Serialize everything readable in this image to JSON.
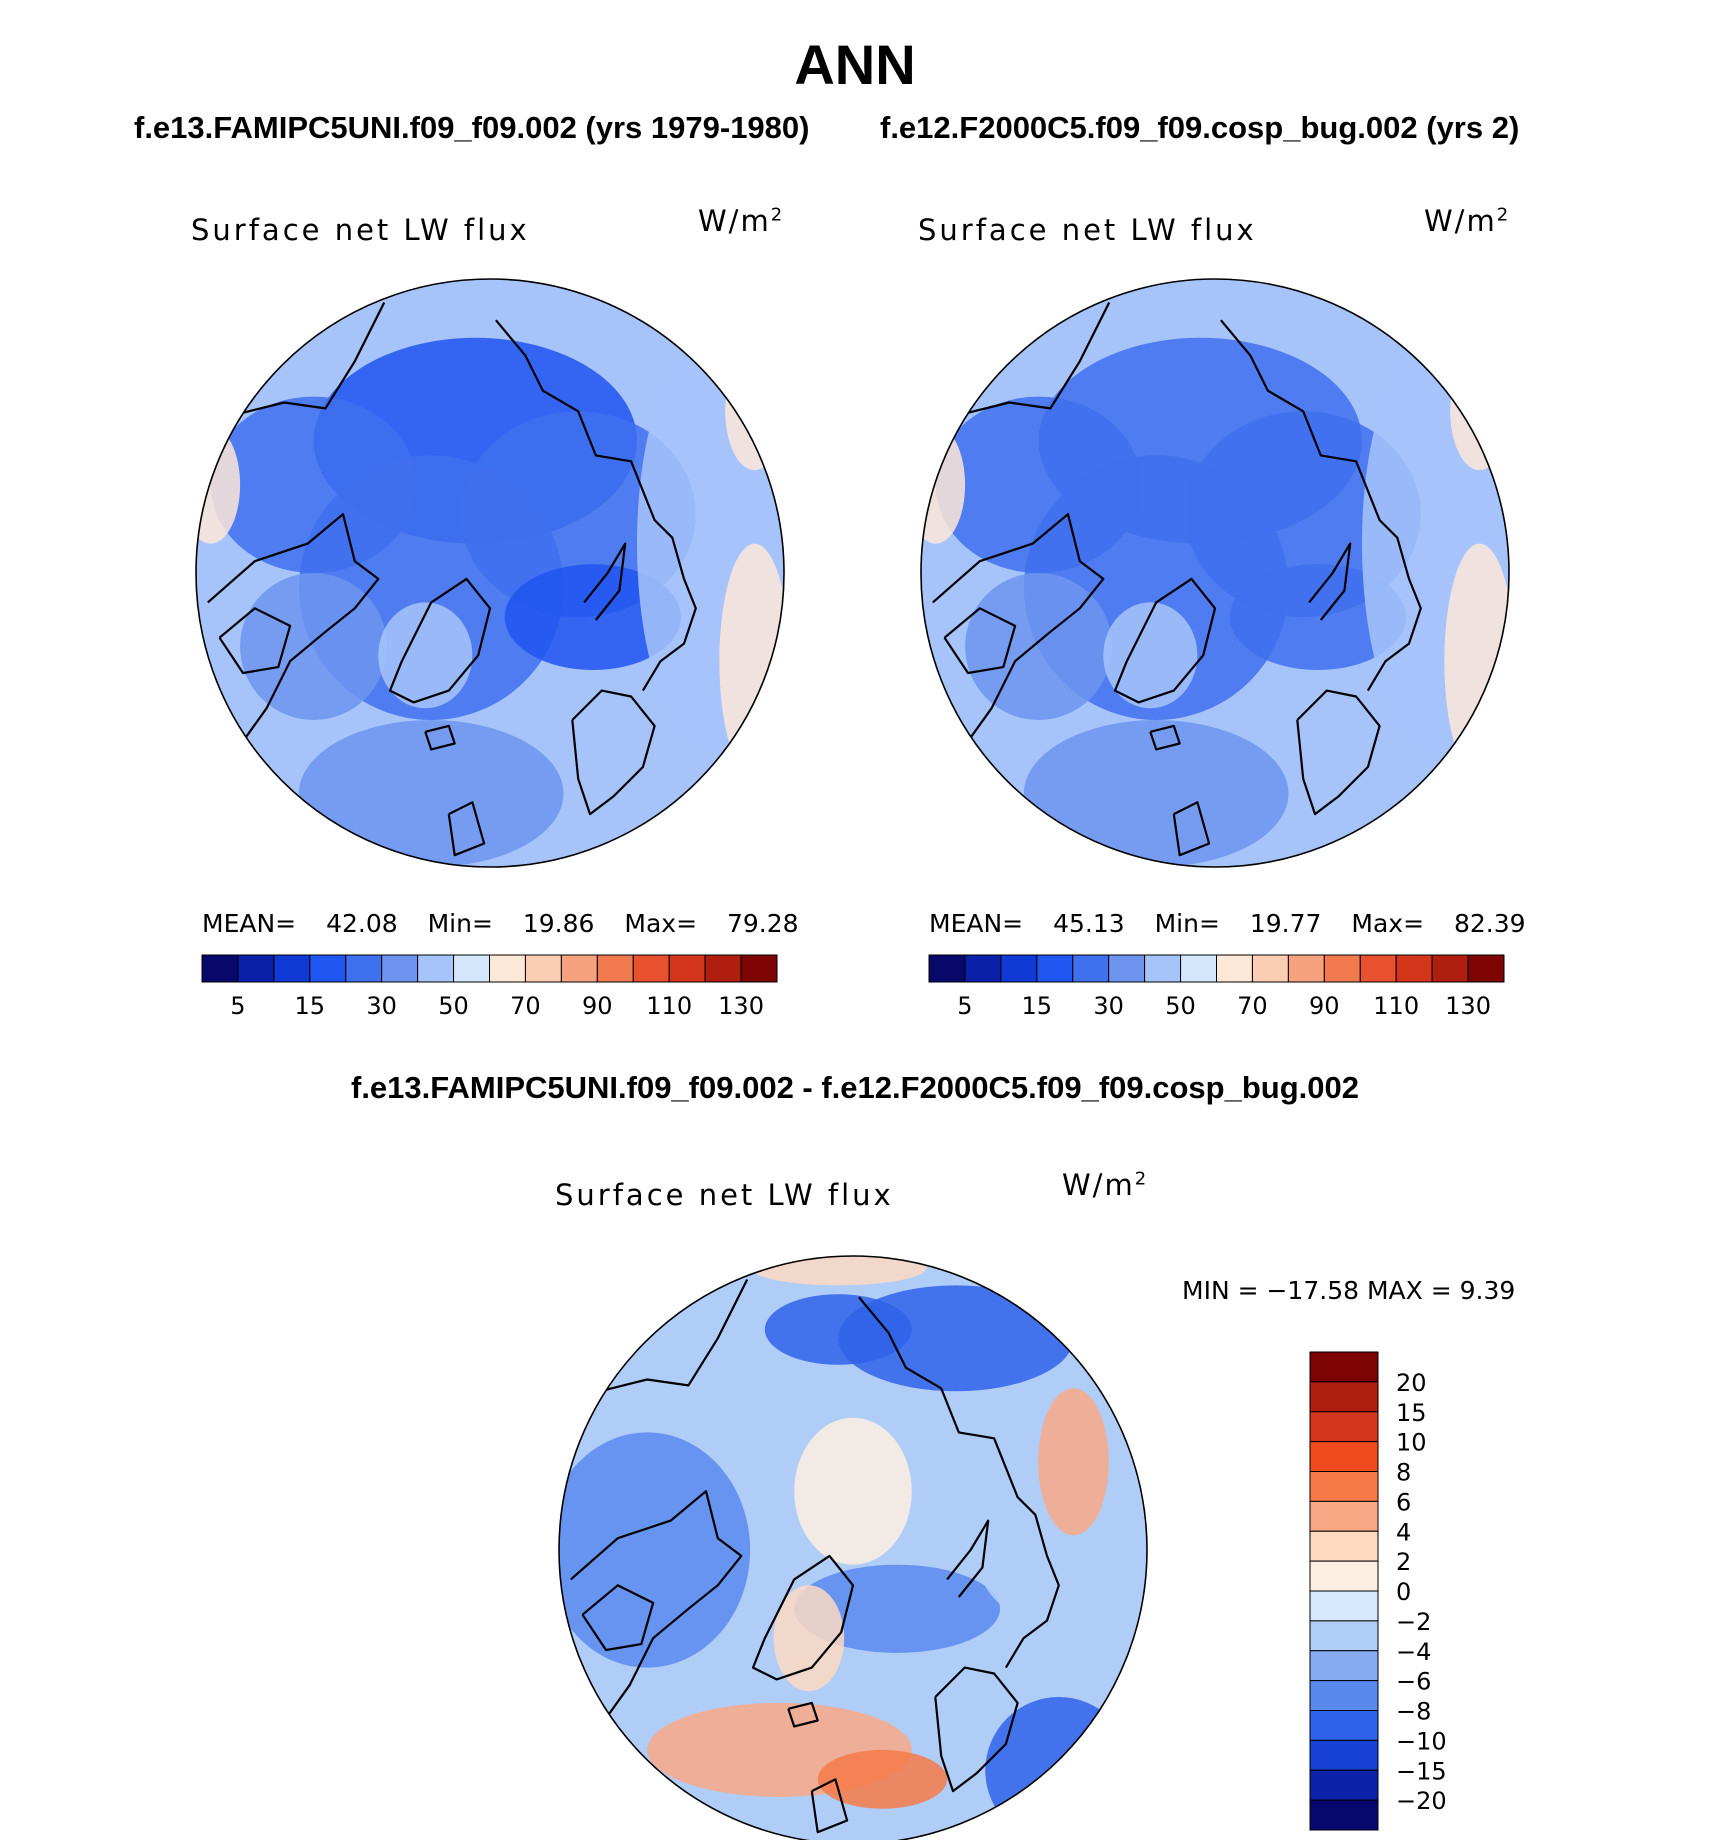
{
  "title": "ANN",
  "subtitles": {
    "left": "f.e13.FAMIPC5UNI.f09_f09.002 (yrs 1979-1980)",
    "right": "f.e12.F2000C5.f09_f09.cosp_bug.002 (yrs 2)"
  },
  "diff_title": "f.e13.FAMIPC5UNI.f09_f09.002 - f.e12.F2000C5.f09_f09.cosp_bug.002",
  "chart_data": [
    {
      "type": "heatmap",
      "projection": "polar stereographic (North Pole)",
      "variable": "Surface net LW flux",
      "units": "W/m2",
      "stats": {
        "mean_label": "MEAN=",
        "mean": "42.08",
        "min_label": "Min=",
        "min": "19.86",
        "max_label": "Max=",
        "max": "79.28"
      },
      "colorbar": {
        "orientation": "horizontal",
        "levels": [
          5,
          10,
          15,
          20,
          30,
          40,
          50,
          60,
          70,
          80,
          90,
          100,
          110,
          120,
          130
        ],
        "tick_labels": [
          "5",
          "15",
          "30",
          "50",
          "70",
          "90",
          "110",
          "130"
        ],
        "colors": [
          "#08086b",
          "#0a20a8",
          "#0f3ad6",
          "#1f55f0",
          "#3f70ee",
          "#6d95f0",
          "#a6c4fa",
          "#d4e7fb",
          "#fde8d8",
          "#fbcdb3",
          "#f7a27f",
          "#f07a4e",
          "#e8512e",
          "#d4361c",
          "#b01e10",
          "#7e0404"
        ]
      }
    },
    {
      "type": "heatmap",
      "projection": "polar stereographic (North Pole)",
      "variable": "Surface net LW flux",
      "units": "W/m2",
      "stats": {
        "mean_label": "MEAN=",
        "mean": "45.13",
        "min_label": "Min=",
        "min": "19.77",
        "max_label": "Max=",
        "max": "82.39"
      },
      "colorbar": {
        "orientation": "horizontal",
        "levels": [
          5,
          10,
          15,
          20,
          30,
          40,
          50,
          60,
          70,
          80,
          90,
          100,
          110,
          120,
          130
        ],
        "tick_labels": [
          "5",
          "15",
          "30",
          "50",
          "70",
          "90",
          "110",
          "130"
        ],
        "colors": [
          "#08086b",
          "#0a20a8",
          "#0f3ad6",
          "#1f55f0",
          "#3f70ee",
          "#6d95f0",
          "#a6c4fa",
          "#d4e7fb",
          "#fde8d8",
          "#fbcdb3",
          "#f7a27f",
          "#f07a4e",
          "#e8512e",
          "#d4361c",
          "#b01e10",
          "#7e0404"
        ]
      }
    },
    {
      "type": "heatmap",
      "projection": "polar stereographic (North Pole)",
      "variable": "Surface net LW flux",
      "units": "W/m2",
      "stats": {
        "text": "MIN = −17.58 MAX =    9.39",
        "min": -17.58,
        "max": 9.39
      },
      "colorbar": {
        "orientation": "vertical",
        "levels": [
          20,
          15,
          10,
          8,
          6,
          4,
          2,
          0,
          -2,
          -4,
          -6,
          -8,
          -10,
          -15,
          -20
        ],
        "tick_labels": [
          "20",
          "15",
          "10",
          "8",
          "6",
          "4",
          "2",
          "0",
          "−2",
          "−4",
          "−6",
          "−8",
          "−10",
          "−15",
          "−20"
        ],
        "colors": [
          "#7e0404",
          "#b01e10",
          "#d4361c",
          "#f04a1e",
          "#f67a48",
          "#f9a886",
          "#fdd9c2",
          "#fdeee2",
          "#d6e8fb",
          "#b0cdf8",
          "#86adf4",
          "#5a89ee",
          "#2f62ea",
          "#1740d4",
          "#0c22a8",
          "#07086b"
        ]
      }
    }
  ]
}
